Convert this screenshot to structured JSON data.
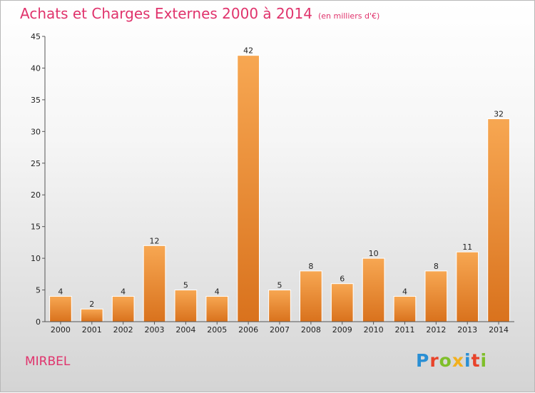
{
  "title": "Achats et Charges Externes 2000 à 2014",
  "unit_label": "(en milliers d'€)",
  "city": "MIRBEL",
  "logo": {
    "letters": [
      {
        "ch": "P",
        "color": "#2a8fd4"
      },
      {
        "ch": "r",
        "color": "#e8432a"
      },
      {
        "ch": "o",
        "color": "#7fbf2a"
      },
      {
        "ch": "x",
        "color": "#f2b01e"
      },
      {
        "ch": "i",
        "color": "#2a8fd4"
      },
      {
        "ch": "t",
        "color": "#e8432a"
      },
      {
        "ch": "i",
        "color": "#7fbf2a"
      }
    ]
  },
  "chart_data": {
    "type": "bar",
    "categories": [
      "2000",
      "2001",
      "2002",
      "2003",
      "2004",
      "2005",
      "2006",
      "2007",
      "2008",
      "2009",
      "2010",
      "2011",
      "2012",
      "2013",
      "2014"
    ],
    "values": [
      4,
      2,
      4,
      12,
      5,
      4,
      42,
      5,
      8,
      6,
      10,
      4,
      8,
      11,
      32
    ],
    "data_labels": [
      "4",
      "2",
      "4",
      "12",
      "5",
      "4",
      "42",
      "5",
      "8",
      "6",
      "10",
      "4",
      "8",
      "11",
      "32"
    ],
    "ylim": [
      0,
      45
    ],
    "yticks": [
      0,
      5,
      10,
      15,
      20,
      25,
      30,
      35,
      40,
      45
    ],
    "ytick_labels": [
      "0",
      "5",
      "10",
      "15",
      "20",
      "25",
      "30",
      "35",
      "40",
      "45"
    ],
    "grid": false,
    "bar_color_top": "#f7a752",
    "bar_color_bottom": "#d9721d",
    "bar_edge_color": "#ffffff"
  }
}
